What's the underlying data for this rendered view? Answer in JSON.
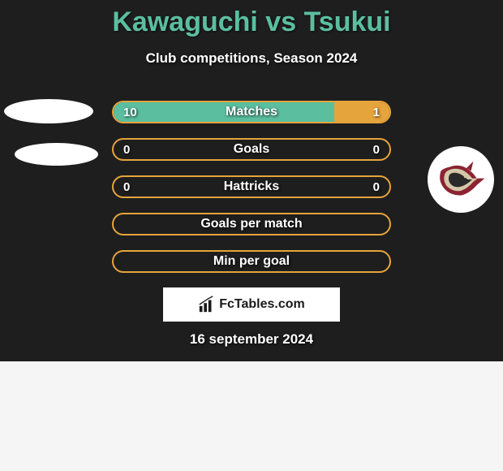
{
  "title": "Kawaguchi vs Tsukui",
  "subtitle": "Club competitions, Season 2024",
  "logo_text": "FcTables.com",
  "date": "16 september 2024",
  "colors": {
    "title": "#5bbf9f",
    "bar_green": "#5bbf9f",
    "bar_orange": "#e6a43c",
    "bg_dark": "#1e1e1e",
    "bg_light": "#f5f5f5",
    "text_white": "#ffffff"
  },
  "bars": [
    {
      "label": "Matches",
      "left_value": "10",
      "right_value": "1",
      "left_pct": 80,
      "right_pct": 20,
      "border_color": "#e6a43c",
      "show_values": true
    },
    {
      "label": "Goals",
      "left_value": "0",
      "right_value": "0",
      "left_pct": 0,
      "right_pct": 0,
      "border_color": "#e6a43c",
      "show_values": true
    },
    {
      "label": "Hattricks",
      "left_value": "0",
      "right_value": "0",
      "left_pct": 0,
      "right_pct": 0,
      "border_color": "#e6a43c",
      "show_values": true
    },
    {
      "label": "Goals per match",
      "left_value": "",
      "right_value": "",
      "left_pct": 0,
      "right_pct": 0,
      "border_color": "#e6a43c",
      "show_values": false
    },
    {
      "label": "Min per goal",
      "left_value": "",
      "right_value": "",
      "left_pct": 0,
      "right_pct": 0,
      "border_color": "#e6a43c",
      "show_values": false
    }
  ]
}
